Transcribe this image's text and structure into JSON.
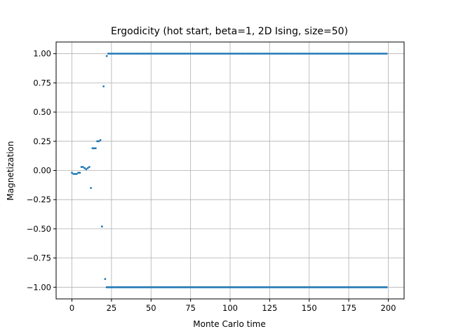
{
  "chart_data": {
    "type": "scatter",
    "title": "Ergodicity (hot start, beta=1, 2D Ising, size=50)",
    "xlabel": "Monte Carlo time",
    "ylabel": "Magnetization",
    "xlim": [
      -10,
      210
    ],
    "ylim": [
      -1.1,
      1.1
    ],
    "grid": true,
    "x_ticks": [
      0,
      25,
      50,
      75,
      100,
      125,
      150,
      175,
      200
    ],
    "x_tick_labels": [
      "0",
      "25",
      "50",
      "75",
      "100",
      "125",
      "150",
      "175",
      "200"
    ],
    "y_ticks": [
      1.0,
      0.75,
      0.5,
      0.25,
      0.0,
      -0.25,
      -0.5,
      -0.75,
      -1.0
    ],
    "y_tick_labels": [
      "1.00",
      "0.75",
      "0.50",
      "0.25",
      "0.00",
      "−0.25",
      "−0.50",
      "−0.75",
      "−1.00"
    ],
    "marker_color": "#1f77b4",
    "series": [
      {
        "x": [
          0,
          1,
          2,
          3,
          4,
          5,
          6,
          7,
          8,
          9,
          10,
          11,
          12,
          13,
          14,
          15,
          16,
          17,
          18,
          19,
          20,
          21,
          22,
          23,
          24,
          25,
          26,
          27,
          28,
          29,
          30
        ],
        "y": [
          -0.02,
          -0.03,
          -0.03,
          -0.03,
          -0.02,
          -0.02,
          0.03,
          0.03,
          0.02,
          0.01,
          0.02,
          0.03,
          -0.15,
          0.19,
          0.19,
          0.19,
          0.25,
          0.25,
          0.26,
          -0.48,
          0.72,
          -0.93,
          0.98,
          1.0,
          1.0,
          1.0,
          1.0,
          1.0,
          1.0,
          1.0,
          1.0
        ]
      },
      {
        "x_start": 31,
        "x_end": 199,
        "y_constant": 1.0
      },
      {
        "x_start": 22,
        "x_end": 199,
        "y_constant": -1.0
      }
    ]
  }
}
